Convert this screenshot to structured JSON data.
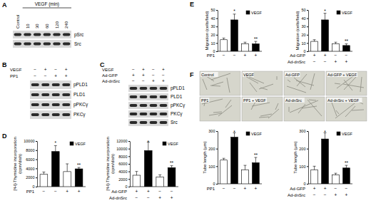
{
  "panel_labels": [
    "A",
    "B",
    "C",
    "D",
    "E",
    "F"
  ],
  "blots": [
    {
      "header": "VEGF (min)",
      "lanes": [
        "Control",
        "10",
        "30",
        "60",
        "120",
        "240"
      ],
      "rows": [
        "pSrc",
        "Src"
      ]
    },
    {
      "conditions": [
        {
          "name": "VEGF",
          "values": [
            "−",
            "+",
            "−",
            "+"
          ]
        },
        {
          "name": "PP1",
          "values": [
            "−",
            "−",
            "+",
            "+"
          ]
        }
      ],
      "rows": [
        "pPLD1",
        "PLD1",
        "pPKCγ",
        "PKCγ"
      ]
    },
    {
      "conditions": [
        {
          "name": "VEGF",
          "values": [
            "−",
            "+",
            "−",
            "+"
          ]
        },
        {
          "name": "Ad-GFP",
          "values": [
            "+",
            "+",
            "−",
            "−"
          ]
        },
        {
          "name": "Ad-dnSrc",
          "values": [
            "−",
            "−",
            "+",
            "+"
          ]
        }
      ],
      "rows": [
        "pPLD1",
        "PLD1",
        "pPKCγ",
        "PKCγ",
        "Src"
      ]
    }
  ],
  "micrographs": [
    "Control",
    "VEGF",
    "Ad-GFP",
    "Ad-GFP + VEGF",
    "PP1",
    "PP1 + VEGF",
    "Ad-dnSrc",
    "Ad-dnSrc + VEGF"
  ],
  "chart_data": [
    {
      "type": "bar",
      "y_label": [
        "[³H]-Thymidine incorporation",
        "(cpm/dish)"
      ],
      "categories": [
        null,
        null,
        null,
        null
      ],
      "series": [
        {
          "color": "#ffffff",
          "values": [
            2700,
            null,
            3300,
            null
          ],
          "errors": [
            500,
            null,
            1700,
            null
          ]
        },
        {
          "name": "VEGF",
          "color": "#000000",
          "values": [
            null,
            7700,
            null,
            3900
          ],
          "errors": [
            null,
            1300,
            null,
            300
          ]
        }
      ],
      "annotations": [
        null,
        "*",
        null,
        "**"
      ],
      "conditions": [
        {
          "name": "PP1",
          "values": [
            "−",
            "−",
            "+",
            "+"
          ]
        }
      ],
      "ylim": [
        0,
        10000
      ],
      "yticks": [
        0,
        2000,
        4000,
        6000,
        8000,
        10000
      ],
      "legend": "upper right"
    },
    {
      "type": "bar",
      "y_label": [
        "[³H]-Thymidine incorporation",
        "(cpm/dish)"
      ],
      "categories": [
        null,
        null,
        null,
        null
      ],
      "series": [
        {
          "color": "#ffffff",
          "values": [
            3000,
            null,
            2500,
            null
          ],
          "errors": [
            1000,
            null,
            600,
            null
          ]
        },
        {
          "name": "VEGF",
          "color": "#000000",
          "values": [
            null,
            9500,
            null,
            5000
          ],
          "errors": [
            null,
            2200,
            null,
            500
          ]
        }
      ],
      "annotations": [
        null,
        "*",
        null,
        "**"
      ],
      "conditions": [
        {
          "name": "Ad-GFP",
          "values": [
            "+",
            "+",
            "−",
            "−"
          ]
        },
        {
          "name": "Ad-dnSrc",
          "values": [
            "−",
            "−",
            "+",
            "+"
          ]
        }
      ],
      "ylim": [
        0,
        12000
      ],
      "yticks": [
        0,
        2000,
        4000,
        6000,
        8000,
        10000,
        12000
      ],
      "legend": "upper right"
    },
    {
      "type": "bar",
      "y_label": [
        "Migration (cells/field)"
      ],
      "categories": [
        null,
        null,
        null,
        null
      ],
      "series": [
        {
          "color": "#ffffff",
          "values": [
            14,
            null,
            9,
            null
          ],
          "errors": [
            2,
            null,
            2,
            null
          ]
        },
        {
          "name": "VEGF",
          "color": "#000000",
          "values": [
            null,
            38,
            null,
            9
          ],
          "errors": [
            null,
            7,
            null,
            3
          ]
        }
      ],
      "annotations": [
        null,
        "*",
        null,
        "**"
      ],
      "conditions": [
        {
          "name": "PP1",
          "values": [
            "−",
            "−",
            "+",
            "+"
          ]
        }
      ],
      "ylim": [
        0,
        50
      ],
      "yticks": [
        0,
        10,
        20,
        30,
        40,
        50
      ],
      "legend": "upper right"
    },
    {
      "type": "bar",
      "y_label": [
        "Migration (cells/field)"
      ],
      "categories": [
        null,
        null,
        null,
        null
      ],
      "series": [
        {
          "color": "#ffffff",
          "values": [
            12,
            null,
            9,
            null
          ],
          "errors": [
            2,
            null,
            2,
            null
          ]
        },
        {
          "name": "VEGF",
          "color": "#000000",
          "values": [
            null,
            38,
            null,
            7
          ],
          "errors": [
            null,
            8,
            null,
            2
          ]
        }
      ],
      "annotations": [
        null,
        "*",
        null,
        "**"
      ],
      "conditions": [
        {
          "name": "Ad-GFP",
          "values": [
            "+",
            "+",
            "−",
            "−"
          ]
        },
        {
          "name": "Ad-dnSrc",
          "values": [
            "−",
            "−",
            "+",
            "+"
          ]
        }
      ],
      "ylim": [
        0,
        50
      ],
      "yticks": [
        0,
        10,
        20,
        30,
        40,
        50
      ],
      "legend": "upper right"
    },
    {
      "type": "bar",
      "y_label": [
        "Tube length (μm)"
      ],
      "categories": [
        null,
        null,
        null,
        null
      ],
      "series": [
        {
          "color": "#ffffff",
          "values": [
            135,
            null,
            80,
            null
          ],
          "errors": [
            10,
            null,
            25,
            null
          ]
        },
        {
          "name": "VEGF",
          "color": "#000000",
          "values": [
            null,
            265,
            null,
            120
          ],
          "errors": [
            null,
            25,
            null,
            30
          ]
        }
      ],
      "annotations": [
        null,
        "*",
        null,
        "**"
      ],
      "conditions": [
        {
          "name": "PP1",
          "values": [
            "−",
            "−",
            "+",
            "+"
          ]
        }
      ],
      "ylim": [
        0,
        300
      ],
      "yticks": [
        0,
        100,
        200,
        300
      ],
      "legend": "upper right"
    },
    {
      "type": "bar",
      "y_label": [
        "Tube length (μm)"
      ],
      "categories": [
        null,
        null,
        null,
        null
      ],
      "series": [
        {
          "color": "#ffffff",
          "values": [
            80,
            null,
            50,
            null
          ],
          "errors": [
            20,
            null,
            10,
            null
          ]
        },
        {
          "name": "VEGF",
          "color": "#000000",
          "values": [
            null,
            255,
            null,
            90
          ],
          "errors": [
            null,
            35,
            null,
            15
          ]
        }
      ],
      "annotations": [
        null,
        "*",
        null,
        "**"
      ],
      "conditions": [
        {
          "name": "Ad-GFP",
          "values": [
            "+",
            "+",
            "−",
            "−"
          ]
        },
        {
          "name": "Ad-dnSrc",
          "values": [
            "−",
            "−",
            "+",
            "+"
          ]
        }
      ],
      "ylim": [
        0,
        300
      ],
      "yticks": [
        0,
        100,
        200,
        300
      ],
      "legend": "upper right"
    }
  ]
}
